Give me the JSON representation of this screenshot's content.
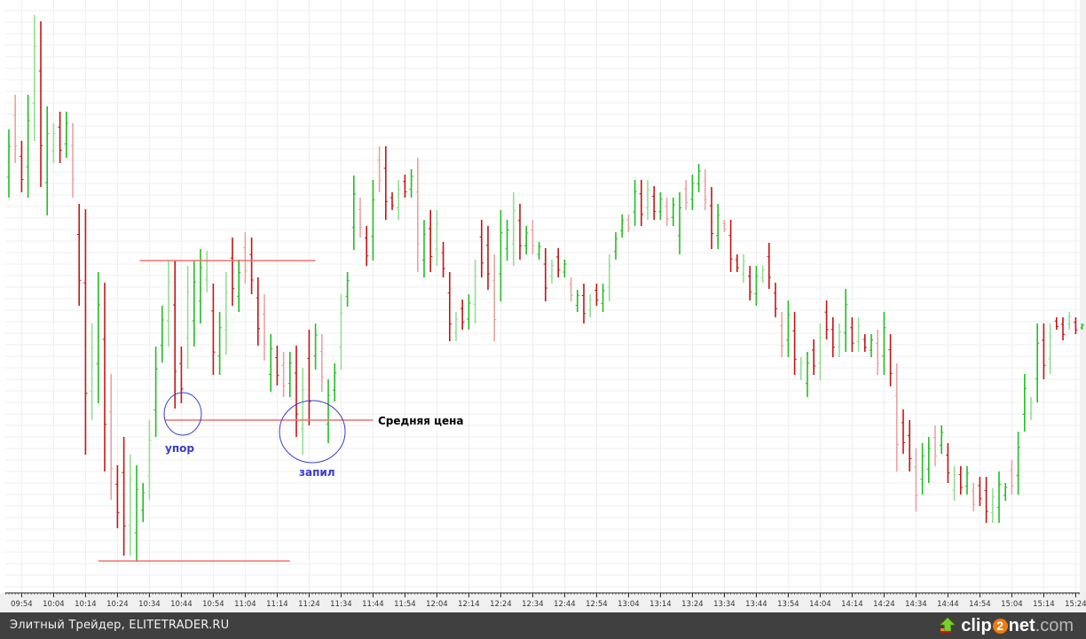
{
  "chart_data": {
    "type": "ohlc",
    "title": "",
    "xlabel": "",
    "ylabel": "",
    "ylim": [
      0,
      66
    ],
    "grid": true,
    "colors": {
      "up": "#22bf22",
      "up_light": "#93e093",
      "down": "#c81414",
      "down_light": "#e9a3a3",
      "annotation_line": "#f07070",
      "annotation_circle": "#3c3cc8",
      "annotation_text": "#3c3cc8"
    },
    "x_ticks": [
      "09:54",
      "10:04",
      "10:14",
      "10:24",
      "10:34",
      "10:44",
      "10:54",
      "11:04",
      "11:14",
      "11:24",
      "11:34",
      "11:44",
      "11:54",
      "12:04",
      "12:14",
      "12:24",
      "12:34",
      "12:44",
      "12:54",
      "13:04",
      "13:14",
      "13:24",
      "13:34",
      "13:44",
      "13:54",
      "14:04",
      "14:14",
      "14:24",
      "14:34",
      "14:44",
      "14:54",
      "15:04",
      "15:14",
      "15:24"
    ],
    "bars": [
      [
        "09:50",
        51.4,
        43.7,
        1
      ],
      [
        "09:52",
        55.3,
        47.6,
        0
      ],
      [
        "09:54",
        50.1,
        44.3,
        0
      ],
      [
        "09:56",
        55.3,
        43.7,
        1
      ],
      [
        "09:58",
        64.3,
        50.1,
        1
      ],
      [
        "10:00",
        63.6,
        44.9,
        0
      ],
      [
        "10:02",
        54.0,
        41.7,
        1
      ],
      [
        "10:04",
        52.1,
        47.6,
        1
      ],
      [
        "10:06",
        53.4,
        47.6,
        0
      ],
      [
        "10:08",
        53.4,
        48.2,
        1
      ],
      [
        "10:10",
        52.1,
        43.7,
        0
      ],
      [
        "10:12",
        43.0,
        31.5,
        0
      ],
      [
        "10:14",
        42.4,
        14.7,
        0
      ],
      [
        "10:16",
        29.5,
        18.6,
        1
      ],
      [
        "10:18",
        35.3,
        20.5,
        1
      ],
      [
        "10:20",
        34.1,
        12.8,
        0
      ],
      [
        "10:22",
        23.8,
        9.6,
        0
      ],
      [
        "10:24",
        13.5,
        6.4,
        0
      ],
      [
        "10:26",
        16.7,
        3.3,
        0
      ],
      [
        "10:28",
        14.7,
        3.3,
        1
      ],
      [
        "10:30",
        13.5,
        2.6,
        1
      ],
      [
        "10:32",
        11.5,
        7.1,
        1
      ],
      [
        "10:34",
        18.6,
        9.6,
        1
      ],
      [
        "10:36",
        26.9,
        16.7,
        1
      ],
      [
        "10:38",
        31.5,
        25.1,
        1
      ],
      [
        "10:40",
        36.6,
        26.9,
        1
      ],
      [
        "10:42",
        36.6,
        19.9,
        0
      ],
      [
        "10:44",
        26.9,
        20.5,
        0
      ],
      [
        "10:46",
        36.0,
        24.4,
        1
      ],
      [
        "10:48",
        36.6,
        26.9,
        1
      ],
      [
        "10:50",
        37.9,
        29.5,
        1
      ],
      [
        "10:52",
        37.7,
        33.0,
        1
      ],
      [
        "10:54",
        34.0,
        23.7,
        0
      ],
      [
        "10:56",
        30.8,
        23.7,
        1
      ],
      [
        "10:58",
        35.3,
        26.0,
        1
      ],
      [
        "11:00",
        39.2,
        31.5,
        0
      ],
      [
        "11:02",
        36.7,
        30.8,
        1
      ],
      [
        "11:04",
        39.8,
        34.0,
        0
      ],
      [
        "11:06",
        39.2,
        32.8,
        0
      ],
      [
        "11:08",
        34.7,
        27.0,
        0
      ],
      [
        "11:10",
        32.8,
        25.3,
        0
      ],
      [
        "11:12",
        28.3,
        21.8,
        1
      ],
      [
        "11:14",
        27.0,
        22.5,
        0
      ],
      [
        "11:16",
        26.3,
        21.2,
        0
      ],
      [
        "11:18",
        26.3,
        21.2,
        1
      ],
      [
        "11:20",
        27.0,
        16.7,
        0
      ],
      [
        "11:22",
        24.5,
        14.7,
        1
      ],
      [
        "11:24",
        28.8,
        18.0,
        0
      ],
      [
        "11:26",
        29.5,
        24.3,
        1
      ],
      [
        "11:28",
        28.3,
        21.8,
        0
      ],
      [
        "11:30",
        23.2,
        16.0,
        1
      ],
      [
        "11:32",
        25.0,
        20.7,
        1
      ],
      [
        "11:34",
        32.8,
        24.3,
        1
      ],
      [
        "11:36",
        35.3,
        31.4,
        1
      ],
      [
        "11:38",
        46.2,
        37.8,
        1
      ],
      [
        "11:40",
        43.7,
        39.2,
        0
      ],
      [
        "11:42",
        40.5,
        36.0,
        0
      ],
      [
        "11:44",
        45.7,
        36.6,
        1
      ],
      [
        "11:46",
        49.5,
        44.3,
        0
      ],
      [
        "11:48",
        49.5,
        41.2,
        0
      ],
      [
        "11:50",
        44.3,
        42.3,
        0
      ],
      [
        "11:52",
        45.7,
        41.2,
        1
      ],
      [
        "11:54",
        46.3,
        43.7,
        0
      ],
      [
        "11:56",
        46.9,
        43.7,
        1
      ],
      [
        "11:58",
        48.2,
        35.3,
        0
      ],
      [
        "12:00",
        41.2,
        34.7,
        1
      ],
      [
        "12:02",
        42.3,
        35.3,
        0
      ],
      [
        "12:04",
        42.3,
        36.0,
        1
      ],
      [
        "12:06",
        38.7,
        34.7,
        0
      ],
      [
        "12:08",
        35.3,
        27.5,
        0
      ],
      [
        "12:10",
        30.8,
        27.5,
        1
      ],
      [
        "12:12",
        32.2,
        28.8,
        0
      ],
      [
        "12:14",
        32.8,
        28.8,
        1
      ],
      [
        "12:16",
        36.7,
        29.5,
        1
      ],
      [
        "12:18",
        41.2,
        34.7,
        0
      ],
      [
        "12:20",
        40.5,
        33.3,
        0
      ],
      [
        "12:22",
        37.3,
        27.5,
        0
      ],
      [
        "12:24",
        42.3,
        32.0,
        1
      ],
      [
        "12:26",
        41.2,
        36.6,
        1
      ],
      [
        "12:28",
        44.3,
        36.0,
        1
      ],
      [
        "12:30",
        43.0,
        36.7,
        0
      ],
      [
        "12:32",
        40.5,
        37.3,
        1
      ],
      [
        "12:34",
        41.2,
        37.3,
        0
      ],
      [
        "12:36",
        38.7,
        36.7,
        1
      ],
      [
        "12:38",
        38.0,
        32.0,
        0
      ],
      [
        "12:40",
        36.7,
        34.0,
        1
      ],
      [
        "12:42",
        38.0,
        34.7,
        0
      ],
      [
        "12:44",
        36.7,
        34.7,
        1
      ],
      [
        "12:46",
        34.7,
        32.0,
        0
      ],
      [
        "12:48",
        33.3,
        30.8,
        1
      ],
      [
        "12:50",
        34.0,
        29.5,
        0
      ],
      [
        "12:52",
        32.8,
        30.2,
        1
      ],
      [
        "12:54",
        34.0,
        31.5,
        0
      ],
      [
        "12:56",
        34.0,
        30.8,
        1
      ],
      [
        "12:58",
        37.3,
        32.0,
        1
      ],
      [
        "13:00",
        39.8,
        36.7,
        1
      ],
      [
        "13:02",
        41.8,
        39.2,
        1
      ],
      [
        "13:04",
        41.8,
        39.8,
        0
      ],
      [
        "13:06",
        45.7,
        40.5,
        1
      ],
      [
        "13:08",
        45.7,
        40.5,
        0
      ],
      [
        "13:10",
        45.7,
        41.2,
        1
      ],
      [
        "13:12",
        45.0,
        41.2,
        0
      ],
      [
        "13:14",
        44.3,
        41.2,
        1
      ],
      [
        "13:16",
        43.7,
        40.5,
        0
      ],
      [
        "13:18",
        43.7,
        40.5,
        1
      ],
      [
        "13:20",
        44.3,
        37.3,
        1
      ],
      [
        "13:22",
        45.7,
        42.3,
        0
      ],
      [
        "13:24",
        46.3,
        42.3,
        1
      ],
      [
        "13:26",
        47.5,
        44.3,
        1
      ],
      [
        "13:28",
        46.9,
        42.3,
        0
      ],
      [
        "13:30",
        44.9,
        37.9,
        0
      ],
      [
        "13:32",
        43.0,
        37.9,
        1
      ],
      [
        "13:34",
        41.2,
        39.8,
        0
      ],
      [
        "13:36",
        41.2,
        35.3,
        0
      ],
      [
        "13:38",
        37.3,
        35.3,
        0
      ],
      [
        "13:40",
        37.3,
        34.1,
        1
      ],
      [
        "13:42",
        36.0,
        32.1,
        0
      ],
      [
        "13:44",
        36.0,
        31.5,
        1
      ],
      [
        "13:46",
        36.0,
        34.1,
        1
      ],
      [
        "13:48",
        38.6,
        33.4,
        0
      ],
      [
        "13:50",
        34.1,
        30.2,
        0
      ],
      [
        "13:52",
        30.8,
        25.7,
        0
      ],
      [
        "13:54",
        32.1,
        25.7,
        1
      ],
      [
        "13:56",
        30.8,
        23.7,
        0
      ],
      [
        "13:58",
        25.7,
        23.1,
        1
      ],
      [
        "14:00",
        26.3,
        21.2,
        1
      ],
      [
        "14:02",
        27.7,
        23.7,
        0
      ],
      [
        "14:04",
        29.5,
        23.1,
        1
      ],
      [
        "14:06",
        32.1,
        27.7,
        0
      ],
      [
        "14:08",
        30.2,
        25.7,
        0
      ],
      [
        "14:10",
        29.5,
        25.7,
        1
      ],
      [
        "14:12",
        33.4,
        26.3,
        1
      ],
      [
        "14:14",
        30.2,
        26.3,
        0
      ],
      [
        "14:16",
        30.2,
        26.3,
        1
      ],
      [
        "14:18",
        28.3,
        26.3,
        0
      ],
      [
        "14:20",
        28.3,
        25.7,
        1
      ],
      [
        "14:22",
        28.8,
        23.7,
        0
      ],
      [
        "14:24",
        30.8,
        23.7,
        1
      ],
      [
        "14:26",
        28.3,
        22.4,
        0
      ],
      [
        "14:28",
        25.0,
        12.8,
        0
      ],
      [
        "14:30",
        19.8,
        14.8,
        0
      ],
      [
        "14:32",
        18.6,
        12.8,
        0
      ],
      [
        "14:34",
        15.4,
        8.3,
        0
      ],
      [
        "14:36",
        16.0,
        10.2,
        1
      ],
      [
        "14:38",
        16.7,
        11.5,
        1
      ],
      [
        "14:40",
        18.0,
        13.4,
        0
      ],
      [
        "14:42",
        18.0,
        14.8,
        1
      ],
      [
        "14:44",
        16.0,
        11.5,
        0
      ],
      [
        "14:46",
        13.4,
        9.5,
        1
      ],
      [
        "14:48",
        13.4,
        10.2,
        0
      ],
      [
        "14:50",
        13.4,
        10.2,
        1
      ],
      [
        "14:52",
        11.5,
        8.3,
        0
      ],
      [
        "14:54",
        12.2,
        8.9,
        0
      ],
      [
        "14:56",
        12.2,
        7.0,
        0
      ],
      [
        "14:58",
        10.9,
        7.0,
        1
      ],
      [
        "15:00",
        12.8,
        7.0,
        1
      ],
      [
        "15:02",
        11.5,
        9.5,
        1
      ],
      [
        "15:04",
        14.1,
        10.2,
        0
      ],
      [
        "15:06",
        17.3,
        10.2,
        1
      ],
      [
        "15:08",
        23.8,
        17.3,
        1
      ],
      [
        "15:10",
        21.2,
        18.6,
        1
      ],
      [
        "15:12",
        29.5,
        20.6,
        1
      ],
      [
        "15:14",
        29.5,
        23.2,
        0
      ],
      [
        "15:16",
        29.5,
        23.8,
        1
      ],
      [
        "15:18",
        30.2,
        28.8,
        0
      ],
      [
        "15:20",
        30.2,
        27.6,
        0
      ],
      [
        "15:22",
        30.8,
        28.8,
        1
      ],
      [
        "15:24",
        30.2,
        28.3,
        0
      ],
      [
        "15:26",
        29.5,
        28.8,
        1
      ]
    ],
    "annotations": {
      "upper_line": {
        "level": 36.6,
        "from": "10:31",
        "to": "11:26"
      },
      "lower_line": {
        "level": 2.7,
        "from": "10:18",
        "to": "11:18"
      },
      "average_line": {
        "level": 18.6,
        "from": "10:39",
        "to": "11:44",
        "label": "Средняя цена"
      },
      "support_label": "упор",
      "sawing_label": "запил"
    }
  },
  "footer": {
    "left_text": "Элитный Трейдер, ELITETRADER.RU",
    "logo": {
      "part1": "clip",
      "part2": "2",
      "part3": "net",
      "part4": ".com"
    }
  }
}
